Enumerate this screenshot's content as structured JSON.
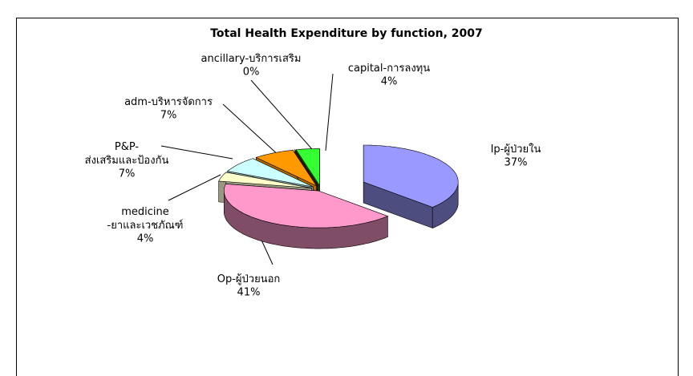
{
  "chart_data": {
    "type": "pie3d",
    "title": "Total Health Expenditure by function, 2007",
    "categories": [
      "Ip-ผู้ป่วยใน",
      "Op-ผู้ป่วยนอก",
      "medicine\n-ยาและเวชภัณฑ์",
      "P&P-\nส่งเสริมและป้องกัน",
      "adm-บริหารจัดการ",
      "ancillary-บริการเสริม",
      "capital-การลงทุน"
    ],
    "values": [
      37,
      41,
      4,
      7,
      7,
      0,
      4
    ],
    "value_labels": [
      "37%",
      "41%",
      "4%",
      "7%",
      "7%",
      "0%",
      "4%"
    ],
    "colors": [
      "#9999ff",
      "#ff99cc",
      "#ffffcc",
      "#ccffff",
      "#ff9900",
      "#663300",
      "#33ff33"
    ],
    "side_colors": [
      "#4d4d80",
      "#804d66",
      "#999980",
      "#80a0a0",
      "#b36b00",
      "#331a00",
      "#1a991a"
    ]
  }
}
